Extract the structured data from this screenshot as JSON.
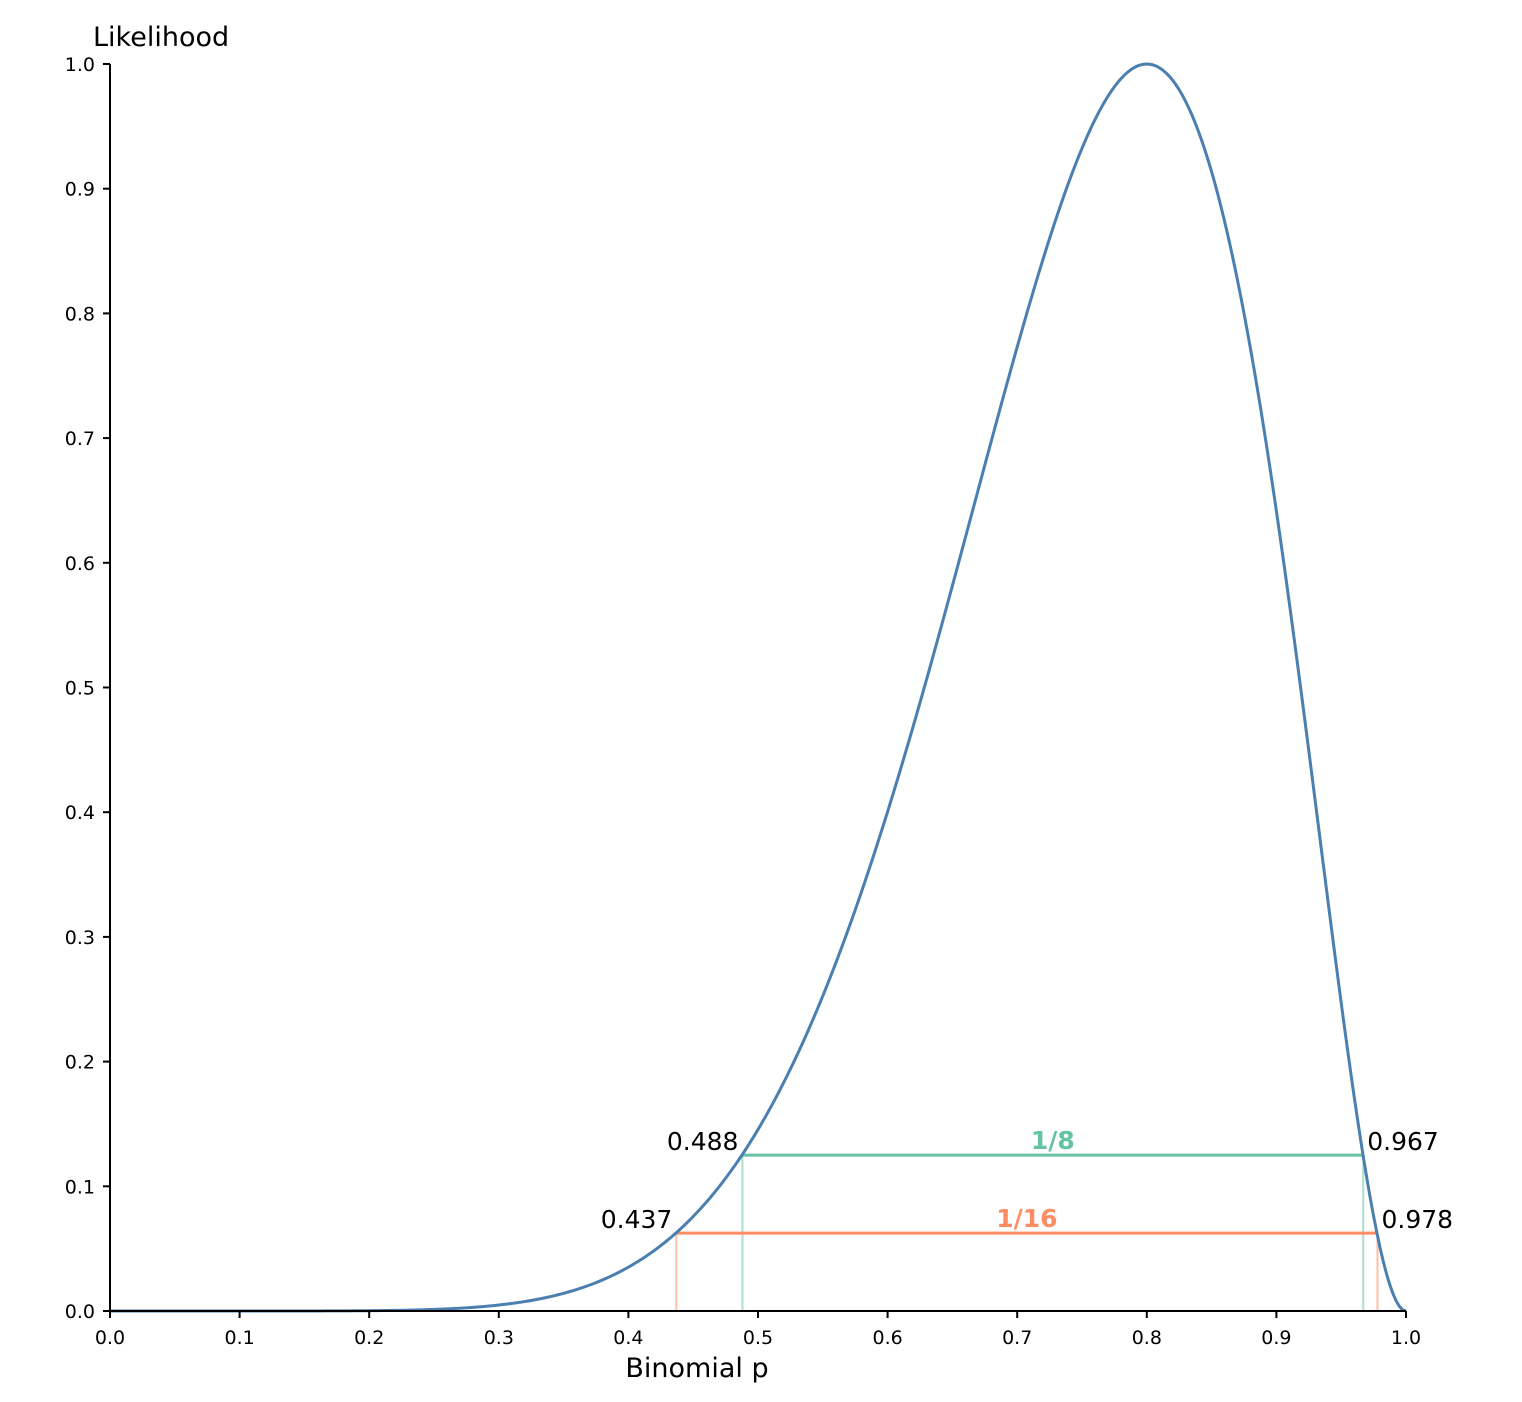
{
  "chart_data": {
    "type": "line",
    "xlabel": "Binomial p",
    "ylabel": "Likelihood",
    "xlim": [
      0,
      1
    ],
    "ylim": [
      0,
      1
    ],
    "x_ticks": [
      "0.0",
      "0.1",
      "0.2",
      "0.3",
      "0.4",
      "0.5",
      "0.6",
      "0.7",
      "0.8",
      "0.9",
      "1.0"
    ],
    "y_ticks": [
      "0.0",
      "0.1",
      "0.2",
      "0.3",
      "0.4",
      "0.5",
      "0.6",
      "0.7",
      "0.8",
      "0.9",
      "1.0"
    ],
    "x_tick_values": [
      0,
      0.1,
      0.2,
      0.3,
      0.4,
      0.5,
      0.6,
      0.7,
      0.8,
      0.9,
      1.0
    ],
    "y_tick_values": [
      0,
      0.1,
      0.2,
      0.3,
      0.4,
      0.5,
      0.6,
      0.7,
      0.8,
      0.9,
      1.0
    ],
    "curve": {
      "color": "#4a7fb0",
      "x": [
        0.0,
        0.05,
        0.1,
        0.15,
        0.2,
        0.25,
        0.3,
        0.35,
        0.4,
        0.45,
        0.5,
        0.55,
        0.6,
        0.65,
        0.7,
        0.75,
        0.8,
        0.85,
        0.9,
        0.95,
        1.0
      ],
      "y": [
        0,
        0,
        4e-05,
        0.00031,
        0.0016,
        0.0057,
        0.0162,
        0.0379,
        0.0774,
        0.1398,
        0.2293,
        0.3481,
        0.4816,
        0.6256,
        0.7701,
        0.9182,
        1.0,
        0.9312,
        0.6854,
        0.3209,
        0
      ]
    },
    "intervals": [
      {
        "label": "1/8",
        "level": 0.125,
        "low": 0.488,
        "high": 0.967,
        "low_label": "0.488",
        "high_label": "0.967",
        "color": "#66c2a5"
      },
      {
        "label": "1/16",
        "level": 0.0625,
        "low": 0.437,
        "high": 0.978,
        "low_label": "0.437",
        "high_label": "0.978",
        "color": "#fc8d62"
      }
    ]
  }
}
